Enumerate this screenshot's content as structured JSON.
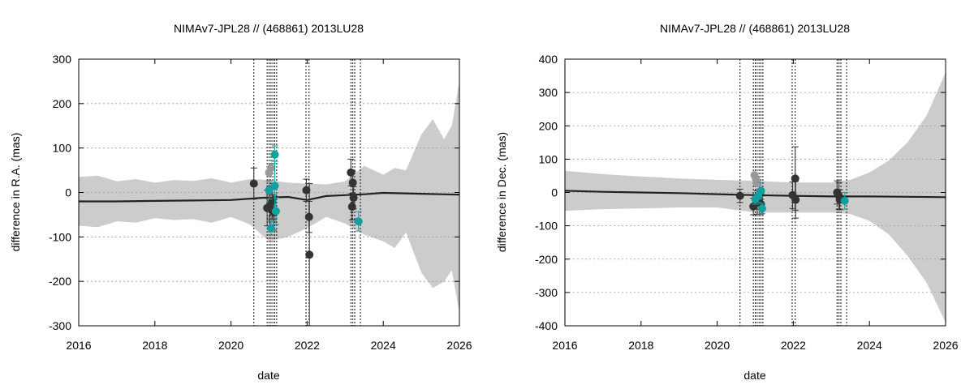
{
  "chart_data": [
    {
      "type": "scatter",
      "title": "NIMAv7-JPL28 // (468861) 2013LU28",
      "xlabel": "date",
      "ylabel": "difference in R.A. (mas)",
      "xlim": [
        2016,
        2026
      ],
      "ylim": [
        -300,
        300
      ],
      "x_ticks": [
        2016,
        2018,
        2020,
        2022,
        2024,
        2026
      ],
      "y_ticks": [
        -300,
        -200,
        -100,
        0,
        100,
        200,
        300
      ],
      "grid": "horizontal dotted",
      "colors": {
        "envelope": "#cccccc",
        "curve": "#222222",
        "dark_points": "#333333",
        "teal_points": "#11a0a0",
        "gray_points": "#999999"
      },
      "uncertainty_envelope": {
        "x": [
          2016,
          2016.5,
          2017,
          2017.5,
          2018,
          2018.5,
          2019,
          2019.5,
          2020,
          2020.5,
          2021,
          2021.5,
          2022,
          2022.5,
          2023,
          2023.5,
          2024,
          2024.3,
          2024.6,
          2025,
          2025.3,
          2025.6,
          2025.8,
          2026
        ],
        "upper": [
          35,
          38,
          25,
          30,
          22,
          28,
          26,
          32,
          22,
          30,
          28,
          22,
          20,
          18,
          25,
          60,
          40,
          55,
          50,
          130,
          165,
          120,
          150,
          250
        ],
        "lower": [
          -75,
          -78,
          -65,
          -68,
          -58,
          -62,
          -60,
          -68,
          -55,
          -72,
          -110,
          -100,
          -80,
          -55,
          -70,
          -95,
          -110,
          -125,
          -90,
          -180,
          -215,
          -200,
          -175,
          -270
        ]
      },
      "nominal_curve": {
        "x": [
          2016,
          2017,
          2018,
          2019,
          2020,
          2020.8,
          2021.5,
          2022,
          2022.5,
          2023,
          2023.5,
          2024,
          2025,
          2026
        ],
        "y": [
          -20,
          -20,
          -19,
          -18,
          -17,
          -12,
          -10,
          -17,
          -8,
          -6,
          -4,
          -1,
          -3,
          -5
        ]
      },
      "observation_dates": [
        2020.6,
        2020.95,
        2021.0,
        2021.05,
        2021.1,
        2021.15,
        2021.2,
        2021.97,
        2022.05,
        2023.15,
        2023.2,
        2023.25,
        2023.4
      ],
      "series": [
        {
          "name": "",
          "color": "#333333",
          "points": [
            {
              "x": 2020.6,
              "y": 20,
              "err": 35
            },
            {
              "x": 2020.95,
              "y": -35,
              "err": 40
            },
            {
              "x": 2021.02,
              "y": -30,
              "err": 45
            },
            {
              "x": 2021.08,
              "y": -20,
              "err": 40
            },
            {
              "x": 2021.12,
              "y": -45,
              "err": 40
            },
            {
              "x": 2021.98,
              "y": 5,
              "err": 25
            },
            {
              "x": 2022.05,
              "y": -55,
              "err": 35
            },
            {
              "x": 2022.06,
              "y": -140,
              "err": 160
            },
            {
              "x": 2023.15,
              "y": 45,
              "err": 30
            },
            {
              "x": 2023.2,
              "y": 22,
              "err": 25
            },
            {
              "x": 2023.22,
              "y": -12,
              "err": 25
            },
            {
              "x": 2023.18,
              "y": -32,
              "err": 30
            }
          ]
        },
        {
          "name": "",
          "color": "#11a0a0",
          "points": [
            {
              "x": 2021.0,
              "y": 5,
              "err": 20
            },
            {
              "x": 2021.05,
              "y": -80,
              "err": 15
            },
            {
              "x": 2021.15,
              "y": 85,
              "err": 20
            },
            {
              "x": 2021.15,
              "y": 15,
              "err": 55
            },
            {
              "x": 2021.18,
              "y": -42,
              "err": 30
            },
            {
              "x": 2023.35,
              "y": -65,
              "err": 22
            }
          ]
        },
        {
          "name": "",
          "color": "#999999",
          "points": [
            {
              "x": 2021.05,
              "y": 55,
              "err": 0
            },
            {
              "x": 2021.0,
              "y": 45,
              "err": 0
            },
            {
              "x": 2021.02,
              "y": -2,
              "err": 0
            },
            {
              "x": 2021.07,
              "y": -60,
              "err": 0
            }
          ]
        }
      ]
    },
    {
      "type": "scatter",
      "title": "NIMAv7-JPL28 // (468861) 2013LU28",
      "xlabel": "date",
      "ylabel": "difference in Dec. (mas)",
      "xlim": [
        2016,
        2026
      ],
      "ylim": [
        -400,
        400
      ],
      "x_ticks": [
        2016,
        2018,
        2020,
        2022,
        2024,
        2026
      ],
      "y_ticks": [
        -400,
        -300,
        -200,
        -100,
        0,
        100,
        200,
        300,
        400
      ],
      "grid": "horizontal dotted",
      "colors": {
        "envelope": "#cccccc",
        "curve": "#222222",
        "dark_points": "#333333",
        "teal_points": "#11a0a0",
        "gray_points": "#999999"
      },
      "uncertainty_envelope": {
        "x": [
          2016,
          2017,
          2018,
          2019,
          2020,
          2021,
          2022,
          2023,
          2023.5,
          2024,
          2024.5,
          2025,
          2025.5,
          2026
        ],
        "upper": [
          65,
          55,
          48,
          42,
          38,
          35,
          30,
          30,
          38,
          60,
          95,
          150,
          230,
          360
        ],
        "lower": [
          -55,
          -50,
          -48,
          -45,
          -45,
          -60,
          -60,
          -60,
          -65,
          -85,
          -125,
          -190,
          -270,
          -390
        ]
      },
      "nominal_curve": {
        "x": [
          2016,
          2017,
          2018,
          2019,
          2020,
          2021,
          2022,
          2023,
          2024,
          2025,
          2026
        ],
        "y": [
          5,
          2,
          0,
          -2,
          -5,
          -8,
          -10,
          -12,
          -12,
          -13,
          -14
        ]
      },
      "observation_dates": [
        2020.6,
        2020.95,
        2021.0,
        2021.05,
        2021.1,
        2021.15,
        2021.2,
        2021.97,
        2022.05,
        2023.15,
        2023.2,
        2023.25,
        2023.4
      ],
      "series": [
        {
          "name": "",
          "color": "#333333",
          "points": [
            {
              "x": 2020.6,
              "y": -10,
              "err": 20
            },
            {
              "x": 2020.95,
              "y": -42,
              "err": 25
            },
            {
              "x": 2021.05,
              "y": -30,
              "err": 35
            },
            {
              "x": 2021.1,
              "y": -20,
              "err": 30
            },
            {
              "x": 2021.15,
              "y": -35,
              "err": 30
            },
            {
              "x": 2021.98,
              "y": -8,
              "err": 40
            },
            {
              "x": 2022.05,
              "y": 42,
              "err": 95
            },
            {
              "x": 2022.06,
              "y": -22,
              "err": 55
            },
            {
              "x": 2023.15,
              "y": 0,
              "err": 35
            },
            {
              "x": 2023.2,
              "y": -10,
              "err": 40
            },
            {
              "x": 2023.22,
              "y": -22,
              "err": 30
            }
          ]
        },
        {
          "name": "",
          "color": "#11a0a0",
          "points": [
            {
              "x": 2021.0,
              "y": -20,
              "err": 15
            },
            {
              "x": 2021.08,
              "y": -10,
              "err": 20
            },
            {
              "x": 2021.15,
              "y": 5,
              "err": 25
            },
            {
              "x": 2021.18,
              "y": -48,
              "err": 15
            },
            {
              "x": 2023.35,
              "y": -25,
              "err": 25
            }
          ]
        },
        {
          "name": "",
          "color": "#999999",
          "points": [
            {
              "x": 2020.98,
              "y": 52,
              "err": 0
            },
            {
              "x": 2021.02,
              "y": 40,
              "err": 0
            },
            {
              "x": 2021.05,
              "y": 28,
              "err": 0
            }
          ]
        }
      ]
    }
  ]
}
